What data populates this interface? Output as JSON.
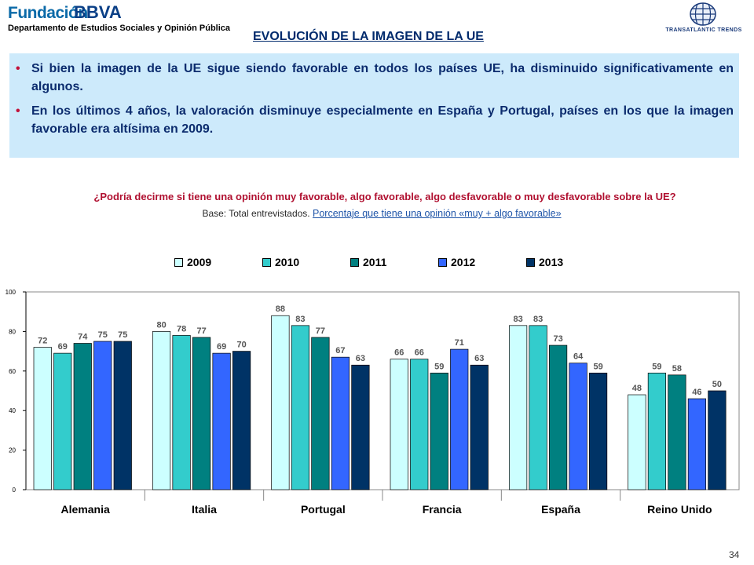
{
  "header": {
    "logo_word": "Fundación",
    "logo_brand": "BBVA",
    "department": "Departamento de Estudios Sociales y Opinión Pública",
    "title": "EVOLUCIÓN DE LA IMAGEN DE LA UE",
    "partner_logo": "TRANSATLANTIC TRENDS",
    "partner_icon": "globe-grid-icon"
  },
  "summary": {
    "bullets": [
      "Si bien la imagen de la UE sigue siendo favorable en todos los países UE, ha disminuido significativamente en algunos.",
      "En los últimos 4 años, la valoración disminuye especialmente en España y Portugal, países en los que la imagen favorable era altísima en 2009."
    ]
  },
  "question": {
    "text": "¿Podría decirme si tiene una opinión muy favorable, algo favorable, algo desfavorable o muy desfavorable sobre la UE?",
    "base_label": "Base: Total entrevistados.",
    "percent_label": "Porcentaje que tiene una opinión «muy + algo favorable»"
  },
  "page_number": "34",
  "colors": {
    "2009": "#ccffff",
    "2010": "#33cccc",
    "2011": "#008080",
    "2012": "#3366ff",
    "2013": "#003366",
    "title": "#002a6c",
    "question": "#b01030",
    "panel": "#cdeafb"
  },
  "chart_data": {
    "type": "bar",
    "categories": [
      "Alemania",
      "Italia",
      "Portugal",
      "Francia",
      "España",
      "Reino Unido"
    ],
    "series": [
      {
        "name": "2009",
        "values": [
          72,
          80,
          88,
          66,
          83,
          48
        ]
      },
      {
        "name": "2010",
        "values": [
          69,
          78,
          83,
          66,
          83,
          59
        ]
      },
      {
        "name": "2011",
        "values": [
          74,
          77,
          77,
          59,
          73,
          58
        ]
      },
      {
        "name": "2012",
        "values": [
          75,
          69,
          67,
          71,
          64,
          46
        ]
      },
      {
        "name": "2013",
        "values": [
          75,
          70,
          63,
          63,
          59,
          50
        ]
      }
    ],
    "ylim": [
      0,
      100
    ],
    "yticks": [
      0,
      20,
      40,
      60,
      80,
      100
    ],
    "data_labels": true,
    "legend_position": "top",
    "grid": false
  }
}
